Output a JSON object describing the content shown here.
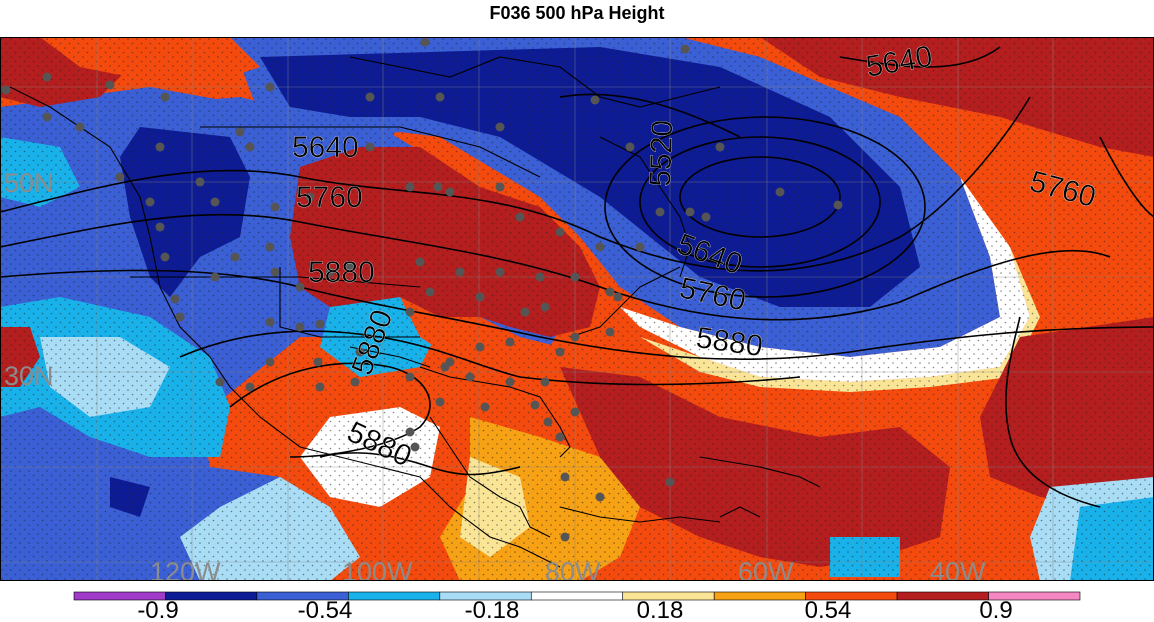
{
  "title": "F036 500 hPa Height",
  "map": {
    "lat_labels": [
      "50N",
      "30N"
    ],
    "lon_labels": [
      "120W",
      "100W",
      "80W",
      "60W",
      "40W"
    ],
    "contour_labels": [
      "5520",
      "5640",
      "5640",
      "5640",
      "5760",
      "5760",
      "5760",
      "5880",
      "5880",
      "5880",
      "5880"
    ]
  },
  "colorbar": {
    "colors": [
      "#9f3ac9",
      "#0d1b94",
      "#3b5fd4",
      "#19b1ea",
      "#a9dcf5",
      "#ffffff",
      "#fae596",
      "#f7a115",
      "#f44a0d",
      "#b51e1e",
      "#f487c1"
    ],
    "tick_labels": [
      "-0.9",
      "-0.54",
      "-0.18",
      "0.18",
      "0.54",
      "0.9"
    ]
  }
}
